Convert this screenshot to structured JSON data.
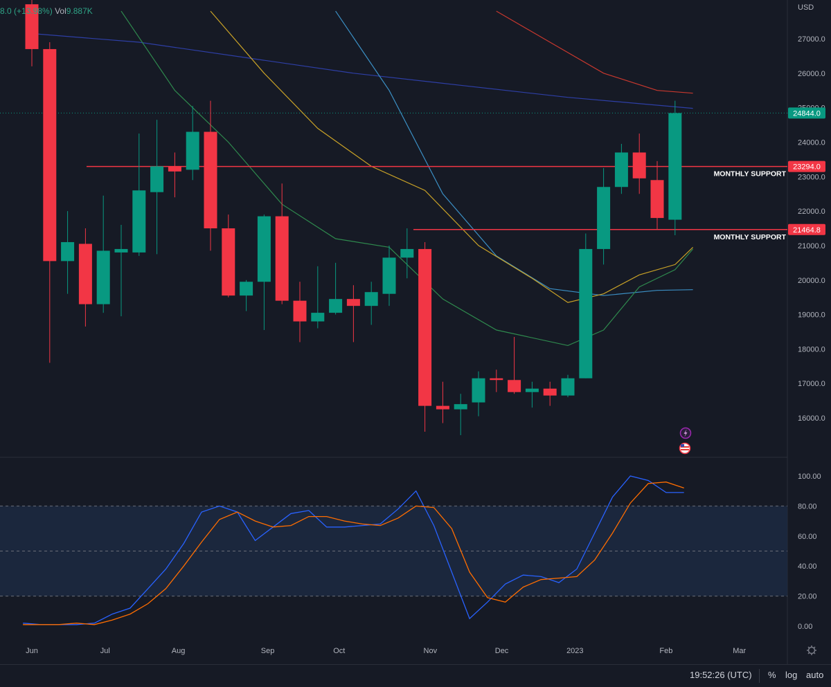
{
  "header": {
    "change": "8.0 (+13.98%)",
    "vol_label": "Vol",
    "vol_value": "9.887K"
  },
  "price_axis": {
    "currency": "USD"
  },
  "levels": [
    {
      "label": "MONTHLY SUPPORT",
      "price": "23294.0",
      "value": 23294,
      "color": "#f23645"
    },
    {
      "label": "MONTHLY SUPPORT",
      "price": "21464.8",
      "value": 21464.8,
      "color": "#f23645"
    }
  ],
  "last_price": {
    "label": "24844.0",
    "value": 24844,
    "color": "#089981"
  },
  "colors": {
    "up": "#089981",
    "down": "#f23645",
    "background": "#161a25",
    "stoch_k": "#2962ff",
    "stoch_d": "#ff6d00",
    "band": "#1c2940"
  },
  "status_bar": {
    "time": "19:52:26 (UTC)",
    "percent": "%",
    "log": "log",
    "auto": "auto"
  },
  "chart_data": [
    {
      "type": "candlestick",
      "timeframe": "weekly",
      "x_labels": [
        "Jun",
        "Jul",
        "Aug",
        "Sep",
        "Oct",
        "Nov",
        "Dec",
        "2023",
        "Feb",
        "Mar"
      ],
      "y_ticks": [
        16000,
        17000,
        18000,
        19000,
        20000,
        21000,
        22000,
        23000,
        24000,
        25000,
        26000,
        27000
      ],
      "ylim": [
        15300,
        27800
      ],
      "candles": [
        {
          "o": 28000,
          "h": 29500,
          "l": 26200,
          "c": 26700
        },
        {
          "o": 26700,
          "h": 26900,
          "l": 17600,
          "c": 20550
        },
        {
          "o": 20550,
          "h": 22000,
          "l": 19600,
          "c": 21100
        },
        {
          "o": 21050,
          "h": 21500,
          "l": 18650,
          "c": 19300
        },
        {
          "o": 19300,
          "h": 22450,
          "l": 19050,
          "c": 20850
        },
        {
          "o": 20800,
          "h": 21600,
          "l": 18950,
          "c": 20900
        },
        {
          "o": 20800,
          "h": 24250,
          "l": 20700,
          "c": 22600
        },
        {
          "o": 22550,
          "h": 24650,
          "l": 20750,
          "c": 23300
        },
        {
          "o": 23300,
          "h": 23700,
          "l": 22400,
          "c": 23150
        },
        {
          "o": 23200,
          "h": 25050,
          "l": 22900,
          "c": 24300
        },
        {
          "o": 24300,
          "h": 25200,
          "l": 20850,
          "c": 21500
        },
        {
          "o": 21500,
          "h": 21900,
          "l": 19500,
          "c": 19550
        },
        {
          "o": 19550,
          "h": 20000,
          "l": 19100,
          "c": 19950
        },
        {
          "o": 19950,
          "h": 21900,
          "l": 18550,
          "c": 21850
        },
        {
          "o": 21850,
          "h": 22800,
          "l": 19300,
          "c": 19400
        },
        {
          "o": 19400,
          "h": 19950,
          "l": 18200,
          "c": 18800
        },
        {
          "o": 18800,
          "h": 20400,
          "l": 18600,
          "c": 19050
        },
        {
          "o": 19050,
          "h": 20500,
          "l": 19000,
          "c": 19450
        },
        {
          "o": 19450,
          "h": 19850,
          "l": 18200,
          "c": 19250
        },
        {
          "o": 19250,
          "h": 19950,
          "l": 18700,
          "c": 19650
        },
        {
          "o": 19600,
          "h": 21000,
          "l": 19250,
          "c": 20650
        },
        {
          "o": 20650,
          "h": 21500,
          "l": 20050,
          "c": 20900
        },
        {
          "o": 20900,
          "h": 21100,
          "l": 15600,
          "c": 16350
        },
        {
          "o": 16350,
          "h": 17050,
          "l": 15850,
          "c": 16250
        },
        {
          "o": 16250,
          "h": 16700,
          "l": 15500,
          "c": 16400
        },
        {
          "o": 16450,
          "h": 17350,
          "l": 16050,
          "c": 17150
        },
        {
          "o": 17150,
          "h": 17400,
          "l": 16750,
          "c": 17100
        },
        {
          "o": 17100,
          "h": 18350,
          "l": 16700,
          "c": 16750
        },
        {
          "o": 16750,
          "h": 17050,
          "l": 16300,
          "c": 16850
        },
        {
          "o": 16850,
          "h": 17050,
          "l": 16350,
          "c": 16650
        },
        {
          "o": 16650,
          "h": 17250,
          "l": 16600,
          "c": 17150
        },
        {
          "o": 17150,
          "h": 21350,
          "l": 17150,
          "c": 20900
        },
        {
          "o": 20900,
          "h": 23250,
          "l": 20450,
          "c": 22700
        },
        {
          "o": 22700,
          "h": 23950,
          "l": 22500,
          "c": 23700
        },
        {
          "o": 23700,
          "h": 24250,
          "l": 22500,
          "c": 22950
        },
        {
          "o": 22900,
          "h": 23450,
          "l": 21450,
          "c": 21800
        },
        {
          "o": 21750,
          "h": 25200,
          "l": 21300,
          "c": 24844
        }
      ],
      "moving_averages": [
        {
          "color": "#2e3fa6",
          "points": [
            [
              0,
              27150
            ],
            [
              6,
              26900
            ],
            [
              12,
              26450
            ],
            [
              18,
              26000
            ],
            [
              24,
              25650
            ],
            [
              30,
              25300
            ],
            [
              37,
              24980
            ]
          ]
        },
        {
          "color": "#c8382e",
          "points": [
            [
              26,
              27800
            ],
            [
              29,
              26900
            ],
            [
              32,
              26000
            ],
            [
              35,
              25500
            ],
            [
              37,
              25420
            ]
          ]
        },
        {
          "color": "#3b8fc4",
          "points": [
            [
              17,
              27800
            ],
            [
              20,
              25500
            ],
            [
              23,
              22500
            ],
            [
              26,
              20700
            ],
            [
              29,
              19750
            ],
            [
              32,
              19550
            ],
            [
              35,
              19700
            ],
            [
              37,
              19720
            ]
          ]
        },
        {
          "color": "#c9a227",
          "points": [
            [
              10,
              27800
            ],
            [
              13,
              26000
            ],
            [
              16,
              24400
            ],
            [
              19,
              23300
            ],
            [
              22,
              22600
            ],
            [
              25,
              21000
            ],
            [
              28,
              20050
            ],
            [
              30,
              19350
            ],
            [
              32,
              19600
            ],
            [
              34,
              20150
            ],
            [
              36,
              20450
            ],
            [
              37,
              20950
            ]
          ]
        },
        {
          "color": "#2f8a4e",
          "points": [
            [
              5,
              27800
            ],
            [
              8,
              25500
            ],
            [
              11,
              24000
            ],
            [
              14,
              22200
            ],
            [
              17,
              21200
            ],
            [
              20,
              20950
            ],
            [
              23,
              19450
            ],
            [
              26,
              18550
            ],
            [
              30,
              18100
            ],
            [
              32,
              18550
            ],
            [
              34,
              19800
            ],
            [
              36,
              20300
            ],
            [
              37,
              20900
            ]
          ]
        }
      ]
    },
    {
      "type": "line",
      "name": "Stochastic RSI",
      "ylim": [
        -5,
        108
      ],
      "y_ticks": [
        0,
        20,
        40,
        60,
        80,
        100
      ],
      "bands": [
        20,
        50,
        80
      ],
      "series": [
        {
          "color": "#2962ff",
          "values": [
            2,
            1,
            1,
            1,
            2,
            8,
            12,
            25,
            38,
            55,
            76,
            80,
            76,
            57,
            66,
            75,
            77,
            66,
            66,
            67,
            68,
            78,
            90,
            67,
            36,
            5,
            16,
            28,
            34,
            33,
            29,
            38,
            62,
            86,
            100,
            97,
            89,
            89
          ]
        },
        {
          "color": "#ff6d00",
          "values": [
            1,
            1,
            1,
            2,
            1,
            4,
            8,
            15,
            25,
            40,
            56,
            71,
            76,
            70,
            66,
            67,
            73,
            73,
            70,
            68,
            67,
            72,
            80,
            79,
            65,
            36,
            19,
            16,
            26,
            31,
            32,
            33,
            44,
            62,
            82,
            95,
            96,
            92
          ]
        }
      ]
    }
  ]
}
